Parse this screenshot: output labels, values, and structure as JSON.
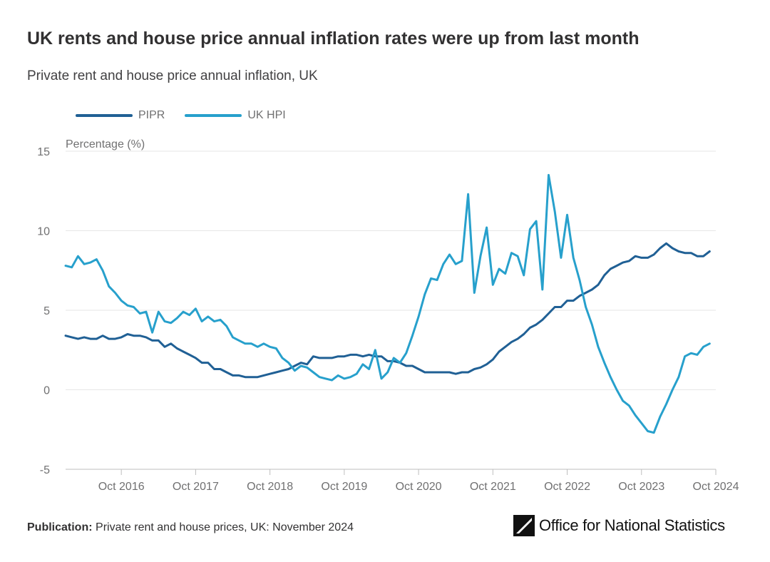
{
  "header": {
    "title": "UK rents and house price annual inflation rates were up from last month",
    "subtitle": "Private rent and house price annual inflation, UK"
  },
  "footer": {
    "publication_label": "Publication:",
    "publication_text": "Private rent and house prices, UK: November 2024"
  },
  "brand": {
    "name_part1": "Office for ",
    "name_part2": "National Statistics",
    "logo_icon": "ons-logo-icon"
  },
  "chart_data": {
    "type": "line",
    "ylabel": "Percentage (%)",
    "ylim": [
      -5,
      15
    ],
    "yticks": [
      15,
      10,
      5,
      0,
      -5
    ],
    "xlim": [
      "2016-01",
      "2024-10"
    ],
    "xticks": [
      "2016-10",
      "2017-10",
      "2018-10",
      "2019-10",
      "2020-10",
      "2021-10",
      "2022-10",
      "2023-10",
      "2024-10"
    ],
    "xtick_labels": [
      "Oct 2016",
      "Oct 2017",
      "Oct 2018",
      "Oct 2019",
      "Oct 2020",
      "Oct 2021",
      "Oct 2022",
      "Oct 2023",
      "Oct 2024"
    ],
    "grid": true,
    "legend_position": "top-left",
    "colors": {
      "PIPR": "#206095",
      "UK HPI": "#27a0cc",
      "grid": "#e6e6e6",
      "axis": "#bebebe"
    },
    "series": [
      {
        "name": "PIPR",
        "color": "#206095",
        "points": [
          [
            "2016-01",
            3.4
          ],
          [
            "2016-02",
            3.3
          ],
          [
            "2016-03",
            3.2
          ],
          [
            "2016-04",
            3.3
          ],
          [
            "2016-05",
            3.2
          ],
          [
            "2016-06",
            3.2
          ],
          [
            "2016-07",
            3.4
          ],
          [
            "2016-08",
            3.2
          ],
          [
            "2016-09",
            3.2
          ],
          [
            "2016-10",
            3.3
          ],
          [
            "2016-11",
            3.5
          ],
          [
            "2016-12",
            3.4
          ],
          [
            "2017-01",
            3.4
          ],
          [
            "2017-02",
            3.3
          ],
          [
            "2017-03",
            3.1
          ],
          [
            "2017-04",
            3.1
          ],
          [
            "2017-05",
            2.7
          ],
          [
            "2017-06",
            2.9
          ],
          [
            "2017-07",
            2.6
          ],
          [
            "2017-08",
            2.4
          ],
          [
            "2017-09",
            2.2
          ],
          [
            "2017-10",
            2.0
          ],
          [
            "2017-11",
            1.7
          ],
          [
            "2017-12",
            1.7
          ],
          [
            "2018-01",
            1.3
          ],
          [
            "2018-02",
            1.3
          ],
          [
            "2018-03",
            1.1
          ],
          [
            "2018-04",
            0.9
          ],
          [
            "2018-05",
            0.9
          ],
          [
            "2018-06",
            0.8
          ],
          [
            "2018-07",
            0.8
          ],
          [
            "2018-08",
            0.8
          ],
          [
            "2018-09",
            0.9
          ],
          [
            "2018-10",
            1.0
          ],
          [
            "2018-11",
            1.1
          ],
          [
            "2018-12",
            1.2
          ],
          [
            "2019-01",
            1.3
          ],
          [
            "2019-02",
            1.5
          ],
          [
            "2019-03",
            1.7
          ],
          [
            "2019-04",
            1.6
          ],
          [
            "2019-05",
            2.1
          ],
          [
            "2019-06",
            2.0
          ],
          [
            "2019-07",
            2.0
          ],
          [
            "2019-08",
            2.0
          ],
          [
            "2019-09",
            2.1
          ],
          [
            "2019-10",
            2.1
          ],
          [
            "2019-11",
            2.2
          ],
          [
            "2019-12",
            2.2
          ],
          [
            "2020-01",
            2.1
          ],
          [
            "2020-02",
            2.2
          ],
          [
            "2020-03",
            2.1
          ],
          [
            "2020-04",
            2.1
          ],
          [
            "2020-05",
            1.8
          ],
          [
            "2020-06",
            1.8
          ],
          [
            "2020-07",
            1.7
          ],
          [
            "2020-08",
            1.5
          ],
          [
            "2020-09",
            1.5
          ],
          [
            "2020-10",
            1.3
          ],
          [
            "2020-11",
            1.1
          ],
          [
            "2020-12",
            1.1
          ],
          [
            "2021-01",
            1.1
          ],
          [
            "2021-02",
            1.1
          ],
          [
            "2021-03",
            1.1
          ],
          [
            "2021-04",
            1.0
          ],
          [
            "2021-05",
            1.1
          ],
          [
            "2021-06",
            1.1
          ],
          [
            "2021-07",
            1.3
          ],
          [
            "2021-08",
            1.4
          ],
          [
            "2021-09",
            1.6
          ],
          [
            "2021-10",
            1.9
          ],
          [
            "2021-11",
            2.4
          ],
          [
            "2021-12",
            2.7
          ],
          [
            "2022-01",
            3.0
          ],
          [
            "2022-02",
            3.2
          ],
          [
            "2022-03",
            3.5
          ],
          [
            "2022-04",
            3.9
          ],
          [
            "2022-05",
            4.1
          ],
          [
            "2022-06",
            4.4
          ],
          [
            "2022-07",
            4.8
          ],
          [
            "2022-08",
            5.2
          ],
          [
            "2022-09",
            5.2
          ],
          [
            "2022-10",
            5.6
          ],
          [
            "2022-11",
            5.6
          ],
          [
            "2022-12",
            5.9
          ],
          [
            "2023-01",
            6.1
          ],
          [
            "2023-02",
            6.3
          ],
          [
            "2023-03",
            6.6
          ],
          [
            "2023-04",
            7.2
          ],
          [
            "2023-05",
            7.6
          ],
          [
            "2023-06",
            7.8
          ],
          [
            "2023-07",
            8.0
          ],
          [
            "2023-08",
            8.1
          ],
          [
            "2023-09",
            8.4
          ],
          [
            "2023-10",
            8.3
          ],
          [
            "2023-11",
            8.3
          ],
          [
            "2023-12",
            8.5
          ],
          [
            "2024-01",
            8.9
          ],
          [
            "2024-02",
            9.2
          ],
          [
            "2024-03",
            8.9
          ],
          [
            "2024-04",
            8.7
          ],
          [
            "2024-05",
            8.6
          ],
          [
            "2024-06",
            8.6
          ],
          [
            "2024-07",
            8.4
          ],
          [
            "2024-08",
            8.4
          ],
          [
            "2024-09",
            8.7
          ]
        ]
      },
      {
        "name": "UK HPI",
        "color": "#27a0cc",
        "points": [
          [
            "2016-01",
            7.8
          ],
          [
            "2016-02",
            7.7
          ],
          [
            "2016-03",
            8.4
          ],
          [
            "2016-04",
            7.9
          ],
          [
            "2016-05",
            8.0
          ],
          [
            "2016-06",
            8.2
          ],
          [
            "2016-07",
            7.5
          ],
          [
            "2016-08",
            6.5
          ],
          [
            "2016-09",
            6.1
          ],
          [
            "2016-10",
            5.6
          ],
          [
            "2016-11",
            5.3
          ],
          [
            "2016-12",
            5.2
          ],
          [
            "2017-01",
            4.8
          ],
          [
            "2017-02",
            4.9
          ],
          [
            "2017-03",
            3.6
          ],
          [
            "2017-04",
            4.9
          ],
          [
            "2017-05",
            4.3
          ],
          [
            "2017-06",
            4.2
          ],
          [
            "2017-07",
            4.5
          ],
          [
            "2017-08",
            4.9
          ],
          [
            "2017-09",
            4.7
          ],
          [
            "2017-10",
            5.1
          ],
          [
            "2017-11",
            4.3
          ],
          [
            "2017-12",
            4.6
          ],
          [
            "2018-01",
            4.3
          ],
          [
            "2018-02",
            4.4
          ],
          [
            "2018-03",
            4.0
          ],
          [
            "2018-04",
            3.3
          ],
          [
            "2018-05",
            3.1
          ],
          [
            "2018-06",
            2.9
          ],
          [
            "2018-07",
            2.9
          ],
          [
            "2018-08",
            2.7
          ],
          [
            "2018-09",
            2.9
          ],
          [
            "2018-10",
            2.7
          ],
          [
            "2018-11",
            2.6
          ],
          [
            "2018-12",
            2.0
          ],
          [
            "2019-01",
            1.7
          ],
          [
            "2019-02",
            1.2
          ],
          [
            "2019-03",
            1.5
          ],
          [
            "2019-04",
            1.4
          ],
          [
            "2019-05",
            1.1
          ],
          [
            "2019-06",
            0.8
          ],
          [
            "2019-07",
            0.7
          ],
          [
            "2019-08",
            0.6
          ],
          [
            "2019-09",
            0.9
          ],
          [
            "2019-10",
            0.7
          ],
          [
            "2019-11",
            0.8
          ],
          [
            "2019-12",
            1.0
          ],
          [
            "2020-01",
            1.6
          ],
          [
            "2020-02",
            1.3
          ],
          [
            "2020-03",
            2.5
          ],
          [
            "2020-04",
            0.7
          ],
          [
            "2020-05",
            1.1
          ],
          [
            "2020-06",
            2.0
          ],
          [
            "2020-07",
            1.7
          ],
          [
            "2020-08",
            2.3
          ],
          [
            "2020-09",
            3.4
          ],
          [
            "2020-10",
            4.6
          ],
          [
            "2020-11",
            6.0
          ],
          [
            "2020-12",
            7.0
          ],
          [
            "2021-01",
            6.9
          ],
          [
            "2021-02",
            7.9
          ],
          [
            "2021-03",
            8.5
          ],
          [
            "2021-04",
            7.9
          ],
          [
            "2021-05",
            8.1
          ],
          [
            "2021-06",
            12.3
          ],
          [
            "2021-07",
            6.1
          ],
          [
            "2021-08",
            8.4
          ],
          [
            "2021-09",
            10.2
          ],
          [
            "2021-10",
            6.6
          ],
          [
            "2021-11",
            7.6
          ],
          [
            "2021-12",
            7.3
          ],
          [
            "2022-01",
            8.6
          ],
          [
            "2022-02",
            8.4
          ],
          [
            "2022-03",
            7.2
          ],
          [
            "2022-04",
            10.1
          ],
          [
            "2022-05",
            10.6
          ],
          [
            "2022-06",
            6.3
          ],
          [
            "2022-07",
            13.5
          ],
          [
            "2022-08",
            11.2
          ],
          [
            "2022-09",
            8.3
          ],
          [
            "2022-10",
            11.0
          ],
          [
            "2022-11",
            8.3
          ],
          [
            "2022-12",
            6.9
          ],
          [
            "2023-01",
            5.2
          ],
          [
            "2023-02",
            4.1
          ],
          [
            "2023-03",
            2.7
          ],
          [
            "2023-04",
            1.7
          ],
          [
            "2023-05",
            0.8
          ],
          [
            "2023-06",
            0.0
          ],
          [
            "2023-07",
            -0.7
          ],
          [
            "2023-08",
            -1.0
          ],
          [
            "2023-09",
            -1.6
          ],
          [
            "2023-10",
            -2.1
          ],
          [
            "2023-11",
            -2.6
          ],
          [
            "2023-12",
            -2.7
          ],
          [
            "2024-01",
            -1.7
          ],
          [
            "2024-02",
            -0.9
          ],
          [
            "2024-03",
            0.0
          ],
          [
            "2024-04",
            0.8
          ],
          [
            "2024-05",
            2.1
          ],
          [
            "2024-06",
            2.3
          ],
          [
            "2024-07",
            2.2
          ],
          [
            "2024-08",
            2.7
          ],
          [
            "2024-09",
            2.9
          ]
        ]
      }
    ]
  }
}
